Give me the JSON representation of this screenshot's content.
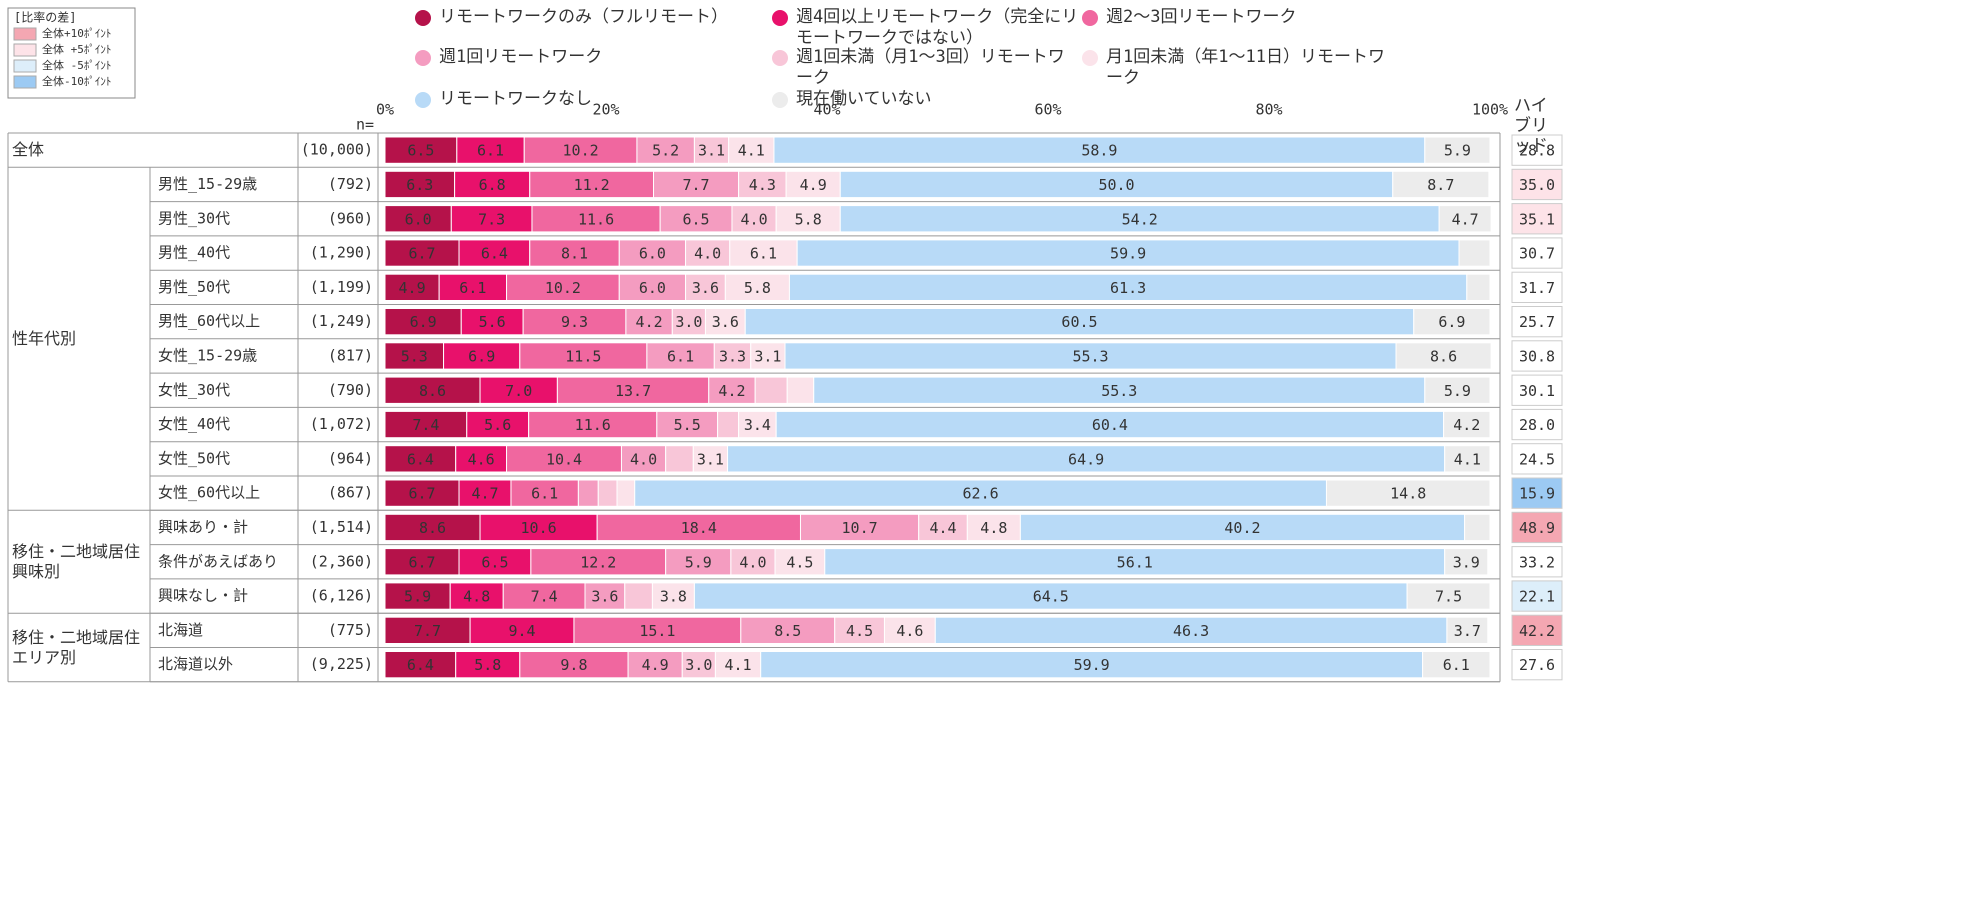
{
  "chart_data": {
    "type": "stacked-bar",
    "diff_legend": {
      "title": "[比率の差]",
      "items": [
        {
          "label": "全体+10ﾎﾟｲﾝﾄ",
          "color": "#f4a7b2"
        },
        {
          "label": "全体 +5ﾎﾟｲﾝﾄ",
          "color": "#fde3e8"
        },
        {
          "label": "全体 -5ﾎﾟｲﾝﾄ",
          "color": "#ddeefa"
        },
        {
          "label": "全体-10ﾎﾟｲﾝﾄ",
          "color": "#9ccaf3"
        }
      ]
    },
    "xlim": [
      0,
      100
    ],
    "xticks": [
      {
        "value": 0,
        "label": "0%"
      },
      {
        "value": 20,
        "label": "20%"
      },
      {
        "value": 40,
        "label": "40%"
      },
      {
        "value": 60,
        "label": "60%"
      },
      {
        "value": 80,
        "label": "80%"
      },
      {
        "value": 100,
        "label": "100%"
      }
    ],
    "grid": false,
    "n_header": "n=",
    "groups": [
      {
        "label": "全体",
        "size": 1
      },
      {
        "label": "性年代別",
        "size": 10
      },
      {
        "label": "移住・二地域居住興味別",
        "size": 3
      },
      {
        "label": "移住・二地域居住エリア別",
        "size": 2
      }
    ],
    "categories": [
      null,
      "男性_15-29歳",
      "男性_30代",
      "男性_40代",
      "男性_50代",
      "男性_60代以上",
      "女性_15-29歳",
      "女性_30代",
      "女性_40代",
      "女性_50代",
      "女性_60代以上",
      "興味あり・計",
      "条件があえばあり",
      "興味なし・計",
      "北海道",
      "北海道以外"
    ],
    "n": [
      "(10,000)",
      "(792)",
      "(960)",
      "(1,290)",
      "(1,199)",
      "(1,249)",
      "(817)",
      "(790)",
      "(1,072)",
      "(964)",
      "(867)",
      "(1,514)",
      "(2,360)",
      "(6,126)",
      "(775)",
      "(9,225)"
    ],
    "series": [
      {
        "name": "リモートワークのみ（フルリモート）",
        "color": "#b5124a",
        "values": [
          6.5,
          6.3,
          6.0,
          6.7,
          4.9,
          6.9,
          5.3,
          8.6,
          7.4,
          6.4,
          6.7,
          8.6,
          6.7,
          5.9,
          7.7,
          6.4
        ],
        "value_labels": [
          "6.5",
          "6.3",
          "6.0",
          "6.7",
          "4.9",
          "6.9",
          "5.3",
          "8.6",
          "7.4",
          "6.4",
          "6.7",
          "8.6",
          "6.7",
          "5.9",
          "7.7",
          "6.4"
        ]
      },
      {
        "name": "週4回以上リモートワーク（完全にリモートワークではない）",
        "color": "#e8116b",
        "values": [
          6.1,
          6.8,
          7.3,
          6.4,
          6.1,
          5.6,
          6.9,
          7.0,
          5.6,
          4.6,
          4.7,
          10.6,
          6.5,
          4.8,
          9.4,
          5.8
        ],
        "value_labels": [
          "6.1",
          "6.8",
          "7.3",
          "6.4",
          "6.1",
          "5.6",
          "6.9",
          "7.0",
          "5.6",
          "4.6",
          "4.7",
          "10.6",
          "6.5",
          "4.8",
          "9.4",
          "5.8"
        ]
      },
      {
        "name": "週2～3回リモートワーク",
        "color": "#f0679f",
        "values": [
          10.2,
          11.2,
          11.6,
          8.1,
          10.2,
          9.3,
          11.5,
          13.7,
          11.6,
          10.4,
          6.1,
          18.4,
          12.2,
          7.4,
          15.1,
          9.8
        ],
        "value_labels": [
          "10.2",
          "11.2",
          "11.6",
          "8.1",
          "10.2",
          "9.3",
          "11.5",
          "13.7",
          "11.6",
          "10.4",
          "6.1",
          "18.4",
          "12.2",
          "7.4",
          "15.1",
          "9.8"
        ]
      },
      {
        "name": "週1回リモートワーク",
        "color": "#f49cc0",
        "values": [
          5.2,
          7.7,
          6.5,
          6.0,
          6.0,
          4.2,
          6.1,
          4.2,
          5.5,
          4.0,
          1.8,
          10.7,
          5.9,
          3.6,
          8.5,
          4.9
        ],
        "value_labels": [
          "5.2",
          "7.7",
          "6.5",
          "6.0",
          "6.0",
          "4.2",
          "6.1",
          "4.2",
          "5.5",
          "4.0",
          null,
          "10.7",
          "5.9",
          "3.6",
          "8.5",
          "4.9"
        ]
      },
      {
        "name": "週1回未満（月1～3回）リモートワーク",
        "color": "#f8c6d8",
        "values": [
          3.1,
          4.3,
          4.0,
          4.0,
          3.6,
          3.0,
          3.3,
          2.9,
          1.9,
          2.5,
          1.7,
          4.4,
          4.0,
          2.5,
          4.5,
          3.0
        ],
        "value_labels": [
          "3.1",
          "4.3",
          "4.0",
          "4.0",
          "3.6",
          "3.0",
          "3.3",
          null,
          null,
          null,
          null,
          "4.4",
          "4.0",
          null,
          "4.5",
          "3.0"
        ]
      },
      {
        "name": "月1回未満（年1～11日）リモートワーク",
        "color": "#fbe3ea",
        "values": [
          4.1,
          4.9,
          5.8,
          6.1,
          5.8,
          3.6,
          3.1,
          2.4,
          3.4,
          3.1,
          1.6,
          4.8,
          4.5,
          3.8,
          4.6,
          4.1
        ],
        "value_labels": [
          "4.1",
          "4.9",
          "5.8",
          "6.1",
          "5.8",
          "3.6",
          "3.1",
          null,
          "3.4",
          "3.1",
          null,
          "4.8",
          "4.5",
          "3.8",
          "4.6",
          "4.1"
        ]
      },
      {
        "name": "リモートワークなし",
        "color": "#b8daf7",
        "values": [
          58.9,
          50.0,
          54.2,
          59.9,
          61.3,
          60.5,
          55.3,
          55.3,
          60.4,
          64.9,
          62.6,
          40.2,
          56.1,
          64.5,
          46.3,
          59.9
        ],
        "value_labels": [
          "58.9",
          "50.0",
          "54.2",
          "59.9",
          "61.3",
          "60.5",
          "55.3",
          "55.3",
          "60.4",
          "64.9",
          "62.6",
          "40.2",
          "56.1",
          "64.5",
          "46.3",
          "59.9"
        ]
      },
      {
        "name": "現在働いていない",
        "color": "#ececec",
        "values": [
          5.9,
          8.7,
          4.7,
          2.8,
          2.1,
          6.9,
          8.6,
          5.9,
          4.2,
          4.1,
          14.8,
          2.3,
          3.9,
          7.5,
          3.7,
          6.1
        ],
        "value_labels": [
          "5.9",
          "8.7",
          "4.7",
          null,
          null,
          "6.9",
          "8.6",
          "5.9",
          "4.2",
          "4.1",
          "14.8",
          null,
          "3.9",
          "7.5",
          "3.7",
          "6.1"
        ]
      }
    ],
    "hybrid": {
      "title": "ハイブリッド",
      "values": [
        28.8,
        35.0,
        35.1,
        30.7,
        31.7,
        25.7,
        30.8,
        30.1,
        28.0,
        24.5,
        15.9,
        48.9,
        33.2,
        22.1,
        42.2,
        27.6
      ],
      "value_labels": [
        "28.8",
        "35.0",
        "35.1",
        "30.7",
        "31.7",
        "25.7",
        "30.8",
        "30.1",
        "28.0",
        "24.5",
        "15.9",
        "48.9",
        "33.2",
        "22.1",
        "42.2",
        "27.6"
      ],
      "colors": [
        "#ffffff",
        "#fde3e8",
        "#fde3e8",
        "#ffffff",
        "#ffffff",
        "#ffffff",
        "#ffffff",
        "#ffffff",
        "#ffffff",
        "#ffffff",
        "#9ccaf3",
        "#f4a7b2",
        "#ffffff",
        "#ddeefa",
        "#f4a7b2",
        "#ffffff"
      ]
    }
  }
}
